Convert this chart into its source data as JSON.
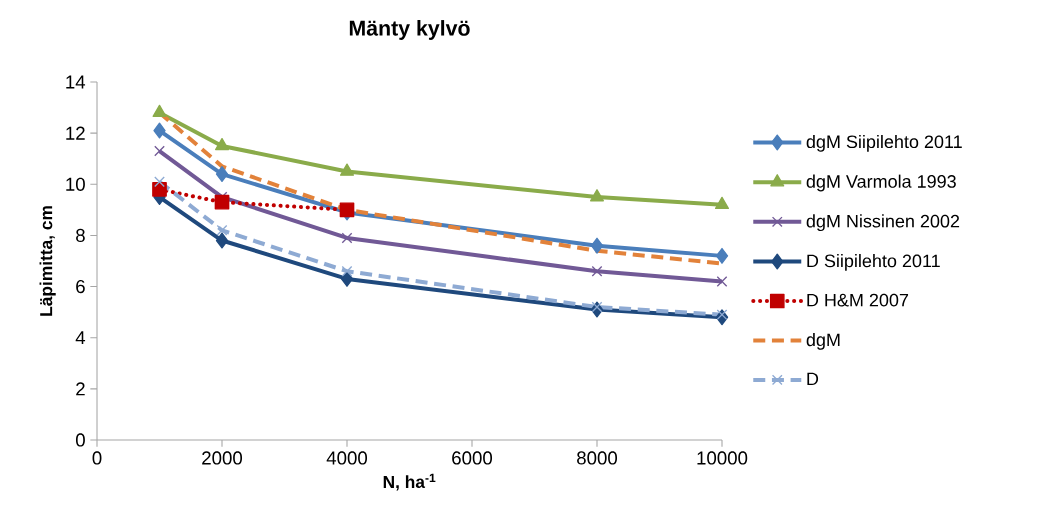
{
  "chart_data": {
    "type": "line",
    "title": "Mänty kylvö",
    "xlabel": "N, ha$^{-1}$",
    "ylabel": "Läpimitta, cm",
    "x": [
      1000,
      2000,
      4000,
      8000,
      10000
    ],
    "xlim": [
      0,
      10000
    ],
    "xticks": [
      0,
      2000,
      4000,
      6000,
      8000,
      10000
    ],
    "ylim": [
      0,
      14
    ],
    "yticks": [
      0,
      2,
      4,
      6,
      8,
      10,
      12,
      14
    ],
    "grid": false,
    "legend": "right",
    "series": [
      {
        "name": "dgM Siipilehto 2011",
        "color": "#4a7ebb",
        "marker": "diamond",
        "line_style": "solid",
        "values": [
          12.1,
          10.4,
          8.9,
          7.6,
          7.2
        ]
      },
      {
        "name": "dgM Varmola 1993",
        "color": "#8aab4a",
        "marker": "triangle",
        "line_style": "solid",
        "values": [
          12.8,
          11.5,
          10.5,
          9.5,
          9.2
        ]
      },
      {
        "name": "dgM Nissinen 2002",
        "color": "#715996",
        "marker": "cross",
        "line_style": "solid",
        "values": [
          11.3,
          9.5,
          7.9,
          6.6,
          6.2
        ]
      },
      {
        "name": "D Siipilehto 2011",
        "color": "#1f497d",
        "marker": "diamond",
        "line_style": "solid",
        "values": [
          9.5,
          7.8,
          6.3,
          5.1,
          4.8
        ]
      },
      {
        "name": "D H&M 2007",
        "color": "#c00000",
        "marker": "square",
        "line_style": "dotted",
        "values": [
          9.8,
          9.3,
          9.0,
          null,
          null
        ]
      },
      {
        "name": "dgM",
        "color": "#e2823a",
        "marker": "none",
        "line_style": "dashed",
        "values": [
          12.8,
          10.7,
          9.0,
          7.4,
          6.9
        ]
      },
      {
        "name": "D",
        "color": "#8eaad3",
        "marker": "cross",
        "line_style": "dashed",
        "values": [
          10.1,
          8.2,
          6.6,
          5.2,
          4.9
        ]
      }
    ]
  }
}
